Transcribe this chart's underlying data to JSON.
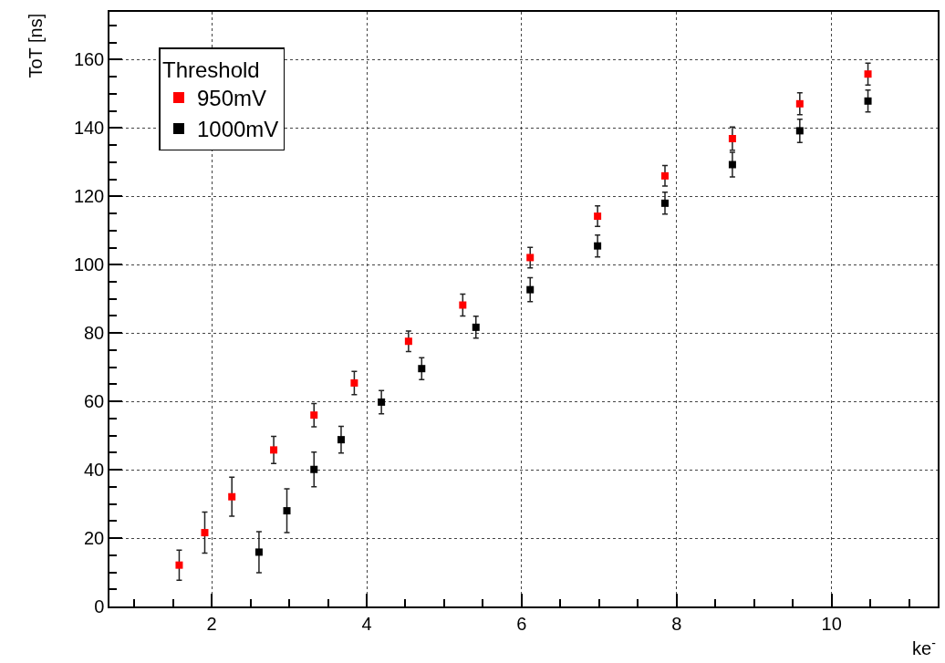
{
  "chart_data": {
    "type": "scatter",
    "xlabel": "ke$^{-}$",
    "ylabel": "ToT [ns]",
    "legend_title": "Threshold",
    "xlim": [
      0.68,
      11.37
    ],
    "ylim": [
      0,
      174
    ],
    "xticks": [
      2,
      4,
      6,
      8,
      10
    ],
    "yticks": [
      0,
      20,
      40,
      60,
      80,
      100,
      120,
      140,
      160
    ],
    "grid": true,
    "legend": "top left",
    "marker": "square",
    "series": [
      {
        "name": "950mV",
        "color": "#ff0000",
        "x": [
          1.58,
          1.91,
          2.26,
          2.8,
          3.32,
          3.84,
          4.54,
          5.24,
          6.11,
          6.98,
          7.85,
          8.72,
          9.59,
          10.47
        ],
        "values": [
          12.1,
          21.6,
          32.1,
          45.8,
          56.0,
          65.4,
          77.6,
          88.2,
          102.1,
          114.2,
          126,
          136.9,
          147.1,
          155.8
        ],
        "errors": [
          4.4,
          6,
          5.7,
          4,
          3.4,
          3.4,
          3,
          3.2,
          3,
          3,
          3,
          3.4,
          3.2,
          3.2
        ]
      },
      {
        "name": "1000mV",
        "color": "#000000",
        "x": [
          2.61,
          2.97,
          3.32,
          3.67,
          4.19,
          4.71,
          5.41,
          6.11,
          6.98,
          7.85,
          8.72,
          9.59,
          10.47
        ],
        "values": [
          15.9,
          28.0,
          40.1,
          48.8,
          59.8,
          69.6,
          81.7,
          92.7,
          105.5,
          118.0,
          129.3,
          139.2,
          147.9
        ],
        "errors": [
          6,
          6.4,
          5.1,
          3.9,
          3.4,
          3.2,
          3.2,
          3.5,
          3.2,
          3.2,
          3.6,
          3.4,
          3.2
        ]
      }
    ]
  }
}
